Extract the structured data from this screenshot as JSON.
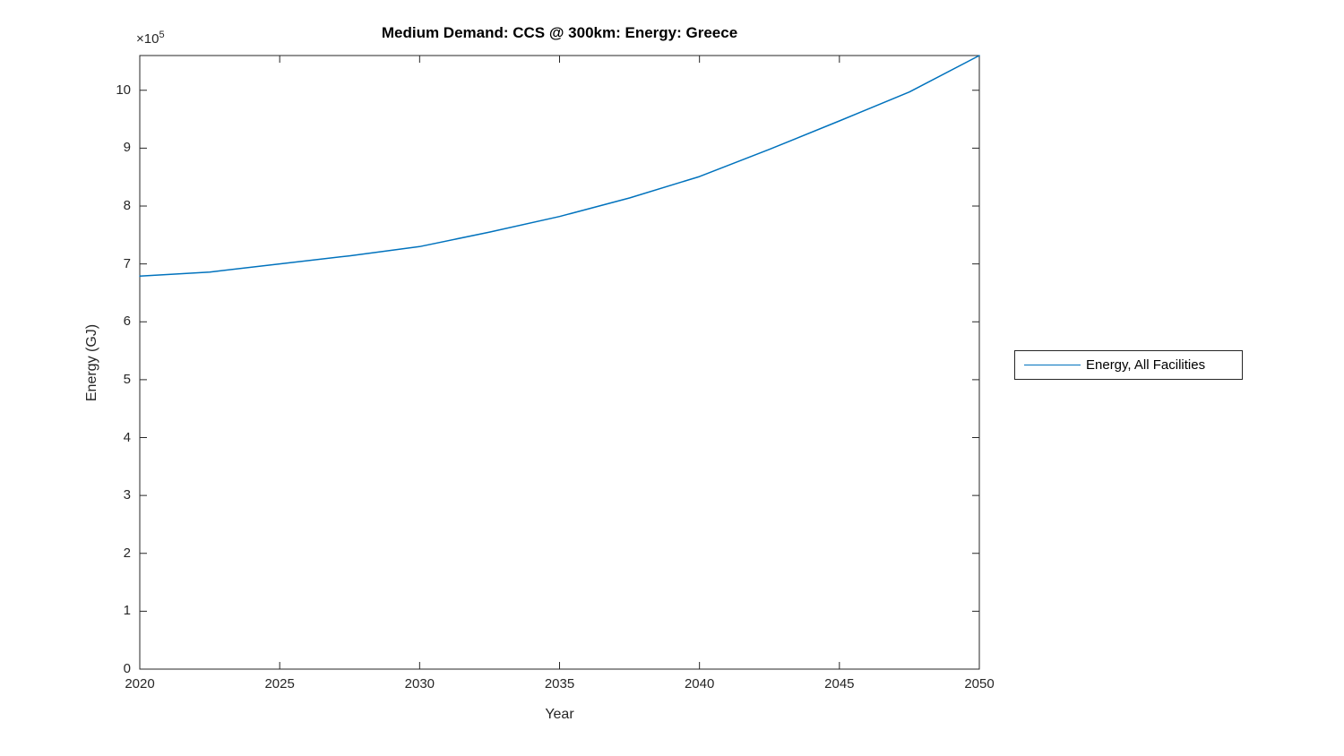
{
  "figure": {
    "title": "Medium Demand: CCS @ 300km: Energy: Greece",
    "xlabel": "Year",
    "ylabel": "Energy (GJ)",
    "y_axis_multiplier": {
      "base": "×10",
      "exponent": "5"
    },
    "legend": {
      "entries": [
        {
          "label": "Energy, All Facilities",
          "color": "#0072BD"
        }
      ]
    },
    "colors": {
      "line": "#0072BD",
      "axis": "#262626",
      "text": "#262626",
      "title": "#000000",
      "background": "#ffffff"
    }
  },
  "chart_data": {
    "type": "line",
    "title": "Medium Demand: CCS @ 300km: Energy: Greece",
    "xlabel": "Year",
    "ylabel": "Energy (GJ)",
    "x": [
      2020,
      2022.5,
      2025,
      2027.5,
      2030,
      2032.5,
      2035,
      2037.5,
      2040,
      2042.5,
      2045,
      2047.5,
      2050
    ],
    "series": [
      {
        "name": "Energy, All Facilities",
        "color": "#0072BD",
        "values": [
          679000,
          686000,
          700000,
          714000,
          730000,
          755000,
          782000,
          814000,
          851000,
          898000,
          947000,
          997000,
          1060000
        ]
      }
    ],
    "xlim": [
      2020,
      2050
    ],
    "ylim": [
      0,
      1060000
    ],
    "xticks": [
      2020,
      2025,
      2030,
      2035,
      2040,
      2045,
      2050
    ],
    "xtick_labels": [
      "2020",
      "2025",
      "2030",
      "2035",
      "2040",
      "2045",
      "2050"
    ],
    "yticks": [
      0,
      100000,
      200000,
      300000,
      400000,
      500000,
      600000,
      700000,
      800000,
      900000,
      1000000
    ],
    "ytick_labels": [
      "0",
      "1",
      "2",
      "3",
      "4",
      "5",
      "6",
      "7",
      "8",
      "9",
      "10"
    ],
    "y_multiplier": "1e5",
    "grid": false,
    "box": true,
    "tick_direction": "in",
    "legend_position": "outside-right"
  }
}
